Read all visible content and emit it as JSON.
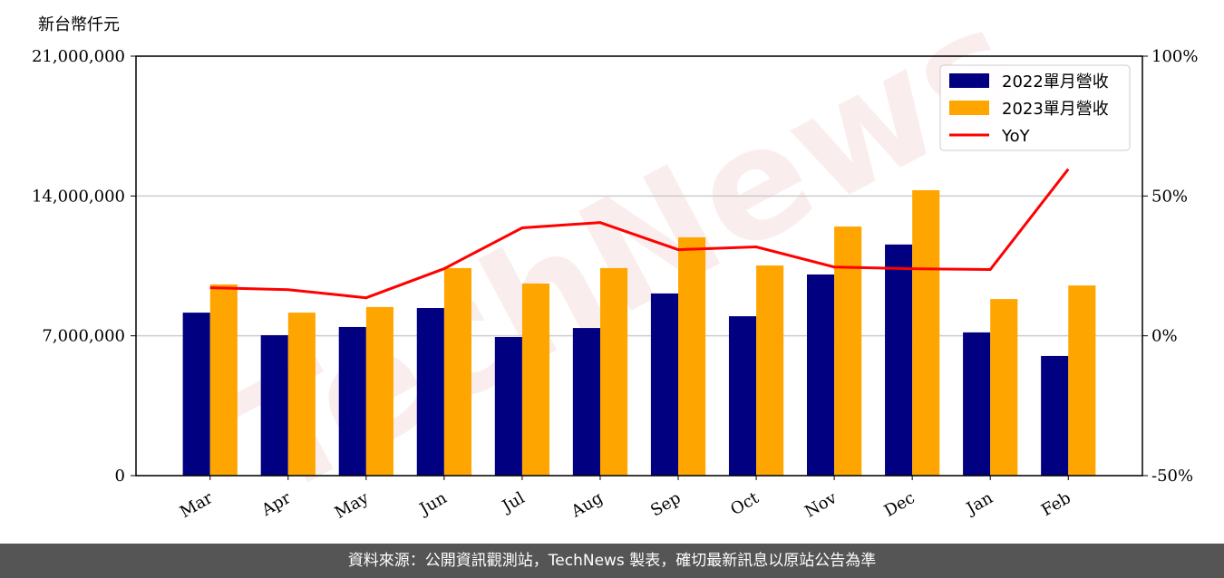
{
  "chart_data": {
    "type": "bar",
    "y_unit_label": "新台幣仟元",
    "watermark": "TechNews",
    "categories": [
      "Mar",
      "Apr",
      "May",
      "Jun",
      "Jul",
      "Aug",
      "Sep",
      "Oct",
      "Nov",
      "Dec",
      "Jan",
      "Feb"
    ],
    "series": [
      {
        "name": "2022單月營收",
        "color": "#000080",
        "values": [
          8160000,
          7030000,
          7440000,
          8390000,
          6940000,
          7390000,
          9120000,
          7980000,
          10070000,
          11570000,
          7170000,
          5990000
        ]
      },
      {
        "name": "2023單月營收",
        "color": "#ffa500",
        "values": [
          9570000,
          8160000,
          8440000,
          10390000,
          9620000,
          10390000,
          11930000,
          10520000,
          12470000,
          14290000,
          8840000,
          9520000
        ]
      },
      {
        "name": "YoY",
        "type": "line",
        "axis": "y2",
        "color": "#ff0000",
        "values": [
          17.2,
          16.5,
          13.6,
          24.0,
          38.6,
          40.5,
          30.8,
          31.8,
          24.6,
          24.0,
          23.7,
          59.6
        ]
      }
    ],
    "ylim": [
      0,
      21000000
    ],
    "yticks": [
      0,
      {
        "value": 7000000,
        "label": "7,000,000"
      },
      {
        "value": 14000000,
        "label": "14,000,000"
      },
      {
        "value": 21000000,
        "label": "21,000,000"
      }
    ],
    "y2lim": [
      -50,
      100
    ],
    "y2ticks": [
      {
        "value": -50,
        "label": "-50%"
      },
      {
        "value": 0,
        "label": "0%"
      },
      {
        "value": 50,
        "label": "50%"
      },
      {
        "value": 100,
        "label": "100%"
      }
    ],
    "grid": true,
    "legend": "upper right"
  },
  "footer": "資料來源：公開資訊觀測站，TechNews 製表，確切最新訊息以原站公告為準"
}
